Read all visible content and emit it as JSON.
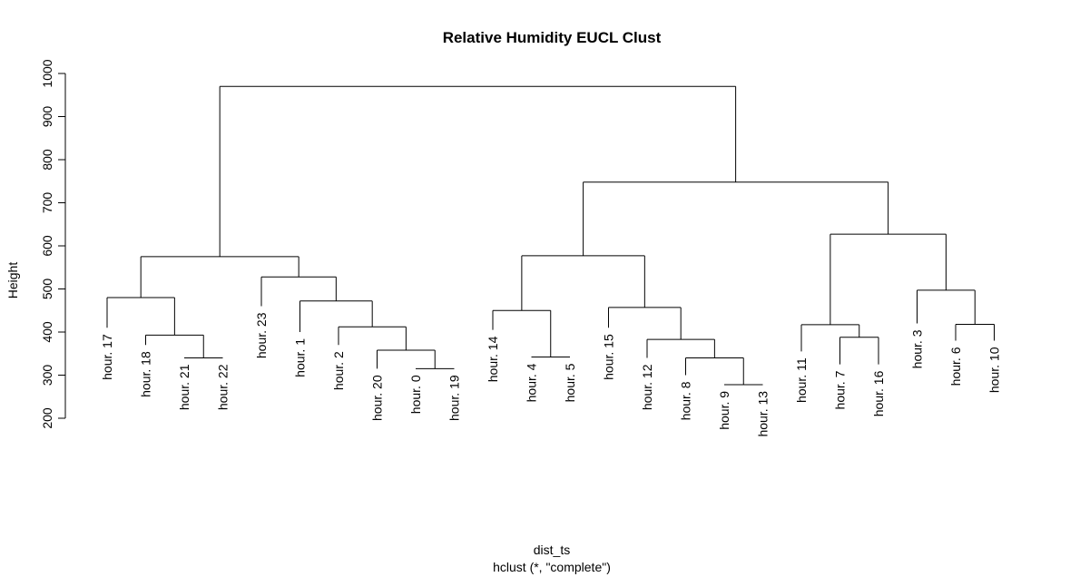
{
  "chart_data": {
    "type": "dendrogram",
    "title": "Relative Humidity EUCL Clust",
    "ylabel": "Height",
    "xlabel": "dist_ts",
    "sublabel": "hclust (*, \"complete\")",
    "ylim": [
      200,
      1000
    ],
    "yticks": [
      200,
      300,
      400,
      500,
      600,
      700,
      800,
      900,
      1000
    ],
    "leaves": [
      {
        "label": "hour. 17",
        "label_top": 410
      },
      {
        "label": "hour. 18",
        "label_top": 370
      },
      {
        "label": "hour. 21",
        "label_top": 340
      },
      {
        "label": "hour. 22",
        "label_top": 340
      },
      {
        "label": "hour. 23",
        "label_top": 460
      },
      {
        "label": "hour. 1",
        "label_top": 400
      },
      {
        "label": "hour. 2",
        "label_top": 370
      },
      {
        "label": "hour. 20",
        "label_top": 315
      },
      {
        "label": "hour. 0",
        "label_top": 315
      },
      {
        "label": "hour. 19",
        "label_top": 315
      },
      {
        "label": "hour. 14",
        "label_top": 405
      },
      {
        "label": "hour. 4",
        "label_top": 342
      },
      {
        "label": "hour. 5",
        "label_top": 342
      },
      {
        "label": "hour. 15",
        "label_top": 410
      },
      {
        "label": "hour. 12",
        "label_top": 340
      },
      {
        "label": "hour. 8",
        "label_top": 300
      },
      {
        "label": "hour. 9",
        "label_top": 278
      },
      {
        "label": "hour. 13",
        "label_top": 278
      },
      {
        "label": "hour. 11",
        "label_top": 355
      },
      {
        "label": "hour. 7",
        "label_top": 325
      },
      {
        "label": "hour. 16",
        "label_top": 325
      },
      {
        "label": "hour. 3",
        "label_top": 420
      },
      {
        "label": "hour. 6",
        "label_top": 380
      },
      {
        "label": "hour. 10",
        "label_top": 380
      }
    ],
    "merges": [
      {
        "left": "L2",
        "right": "L3",
        "height": 340
      },
      {
        "left": "L1",
        "right": "N0",
        "height": 393
      },
      {
        "left": "L0",
        "right": "N1",
        "height": 480
      },
      {
        "left": "L8",
        "right": "L9",
        "height": 315
      },
      {
        "left": "L7",
        "right": "N3",
        "height": 358
      },
      {
        "left": "L6",
        "right": "N4",
        "height": 412
      },
      {
        "left": "L5",
        "right": "N5",
        "height": 472
      },
      {
        "left": "L4",
        "right": "N6",
        "height": 528
      },
      {
        "left": "N2",
        "right": "N7",
        "height": 575
      },
      {
        "left": "L11",
        "right": "L12",
        "height": 342
      },
      {
        "left": "L10",
        "right": "N9",
        "height": 450
      },
      {
        "left": "L16",
        "right": "L17",
        "height": 278
      },
      {
        "left": "L15",
        "right": "N11",
        "height": 340
      },
      {
        "left": "L14",
        "right": "N12",
        "height": 383
      },
      {
        "left": "L13",
        "right": "N13",
        "height": 457
      },
      {
        "left": "N10",
        "right": "N14",
        "height": 577
      },
      {
        "left": "L19",
        "right": "L20",
        "height": 388
      },
      {
        "left": "L18",
        "right": "N16",
        "height": 417
      },
      {
        "left": "L22",
        "right": "L23",
        "height": 418
      },
      {
        "left": "L21",
        "right": "N18",
        "height": 497
      },
      {
        "left": "N17",
        "right": "N19",
        "height": 627
      },
      {
        "left": "N15",
        "right": "N20",
        "height": 748
      },
      {
        "left": "N8",
        "right": "N21",
        "height": 970
      }
    ]
  }
}
